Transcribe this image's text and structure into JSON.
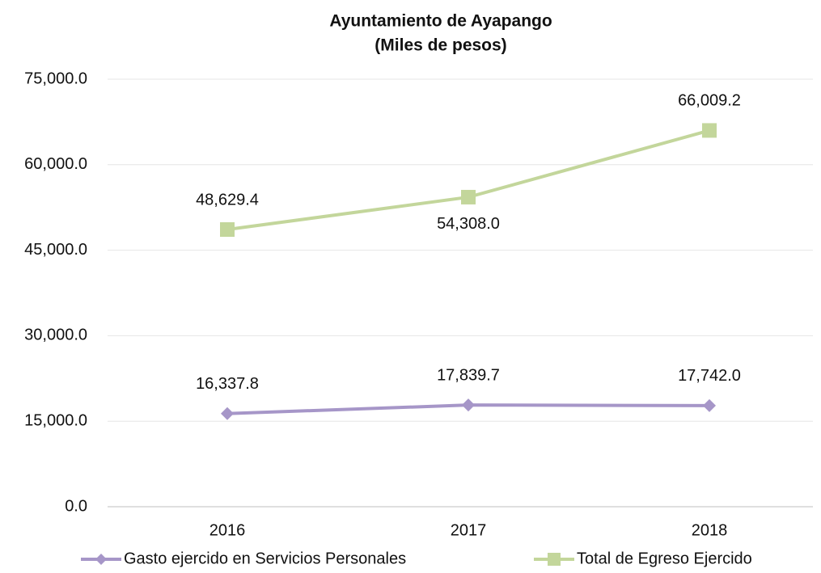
{
  "chart_data": {
    "type": "line",
    "title": "Ayuntamiento de Ayapango",
    "subtitle": "(Miles de pesos)",
    "categories": [
      "2016",
      "2017",
      "2018"
    ],
    "series": [
      {
        "name": "Gasto ejercido en Servicios Personales",
        "color": "#a696c8",
        "marker": "diamond",
        "values": [
          16337.8,
          17839.7,
          17742.0
        ],
        "value_labels": [
          "16,337.8",
          "17,839.7",
          "17,742.0"
        ]
      },
      {
        "name": "Total de Egreso Ejercido",
        "color": "#c3d69b",
        "marker": "square",
        "values": [
          48629.4,
          54308.0,
          66009.2
        ],
        "value_labels": [
          "48,629.4",
          "54,308.0",
          "66,009.2"
        ]
      }
    ],
    "ylim": [
      0,
      75000
    ],
    "yticks": [
      {
        "value": 0,
        "label": "0.0"
      },
      {
        "value": 15000,
        "label": "15,000.0"
      },
      {
        "value": 30000,
        "label": "30,000.0"
      },
      {
        "value": 45000,
        "label": "45,000.0"
      },
      {
        "value": 60000,
        "label": "60,000.0"
      },
      {
        "value": 75000,
        "label": "75,000.0"
      }
    ],
    "grid": true,
    "legend": "bottom"
  }
}
